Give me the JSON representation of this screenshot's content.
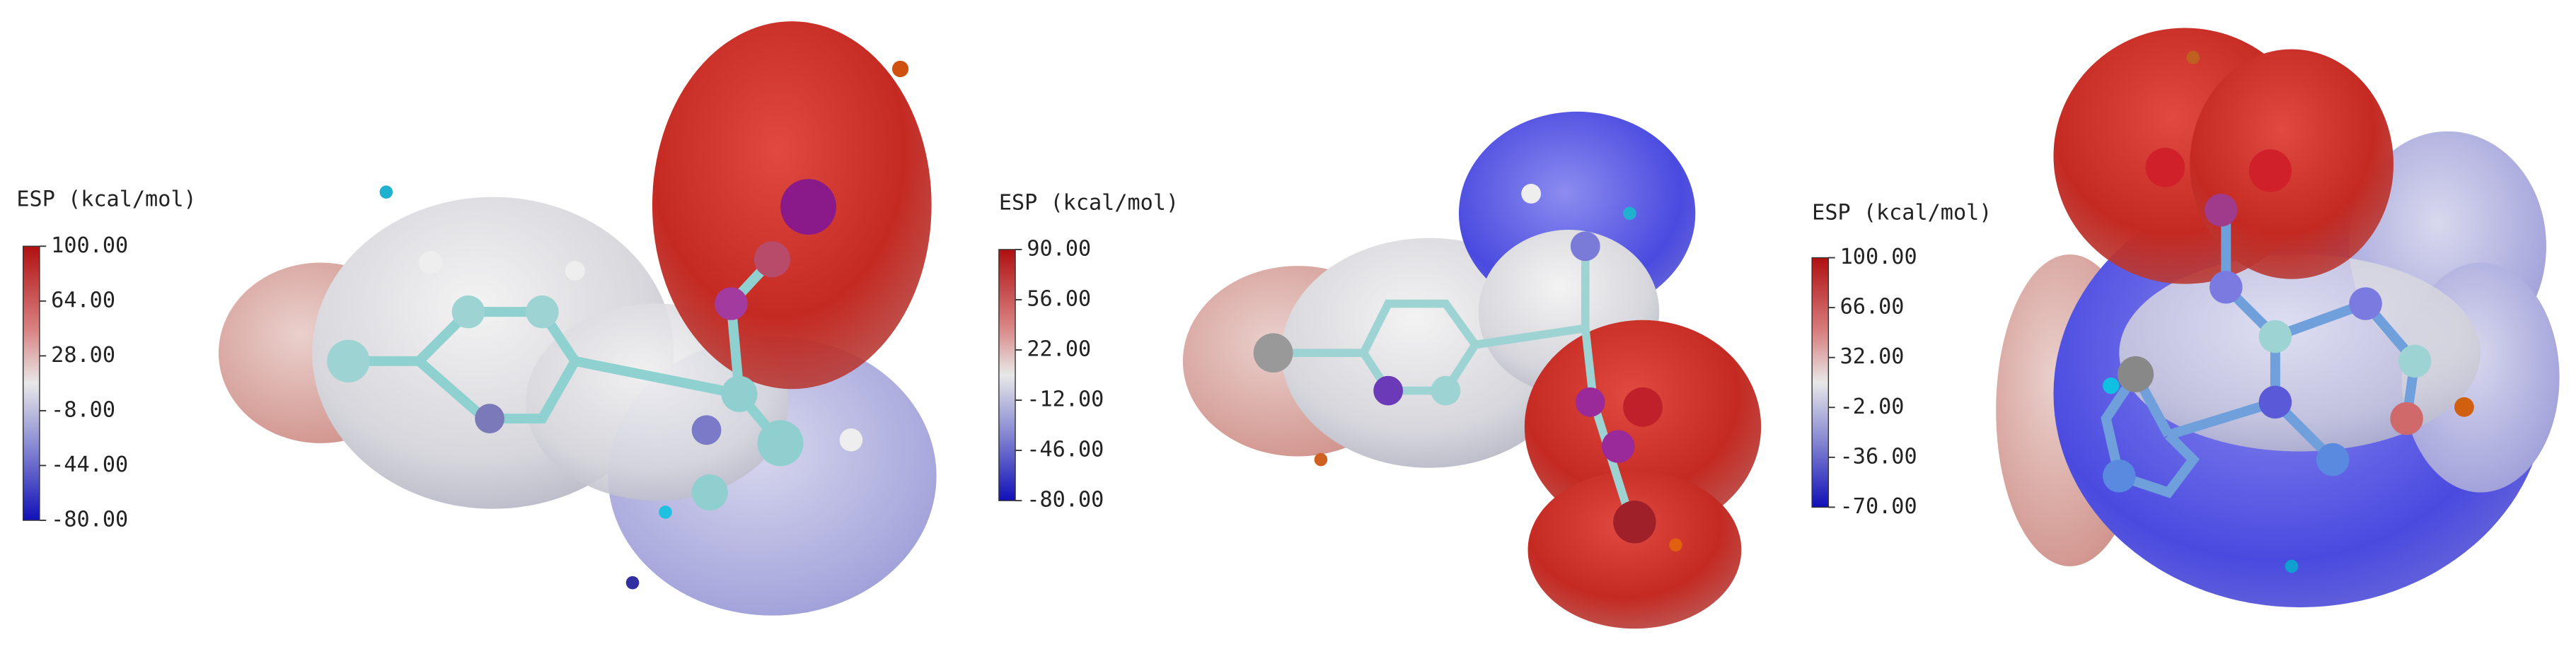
{
  "panels": [
    {
      "colorbar": {
        "title": "ESP (kcal/mol)",
        "ticks": [
          "100.00",
          "64.00",
          "28.00",
          "-8.00",
          "-44.00",
          "-80.00"
        ]
      }
    },
    {
      "colorbar": {
        "title": "ESP (kcal/mol)",
        "ticks": [
          "90.00",
          "56.00",
          "22.00",
          "-12.00",
          "-46.00",
          "-80.00"
        ]
      }
    },
    {
      "colorbar": {
        "title": "ESP (kcal/mol)",
        "ticks": [
          "100.00",
          "66.00",
          "32.00",
          "-2.00",
          "-36.00",
          "-70.00"
        ]
      }
    }
  ]
}
